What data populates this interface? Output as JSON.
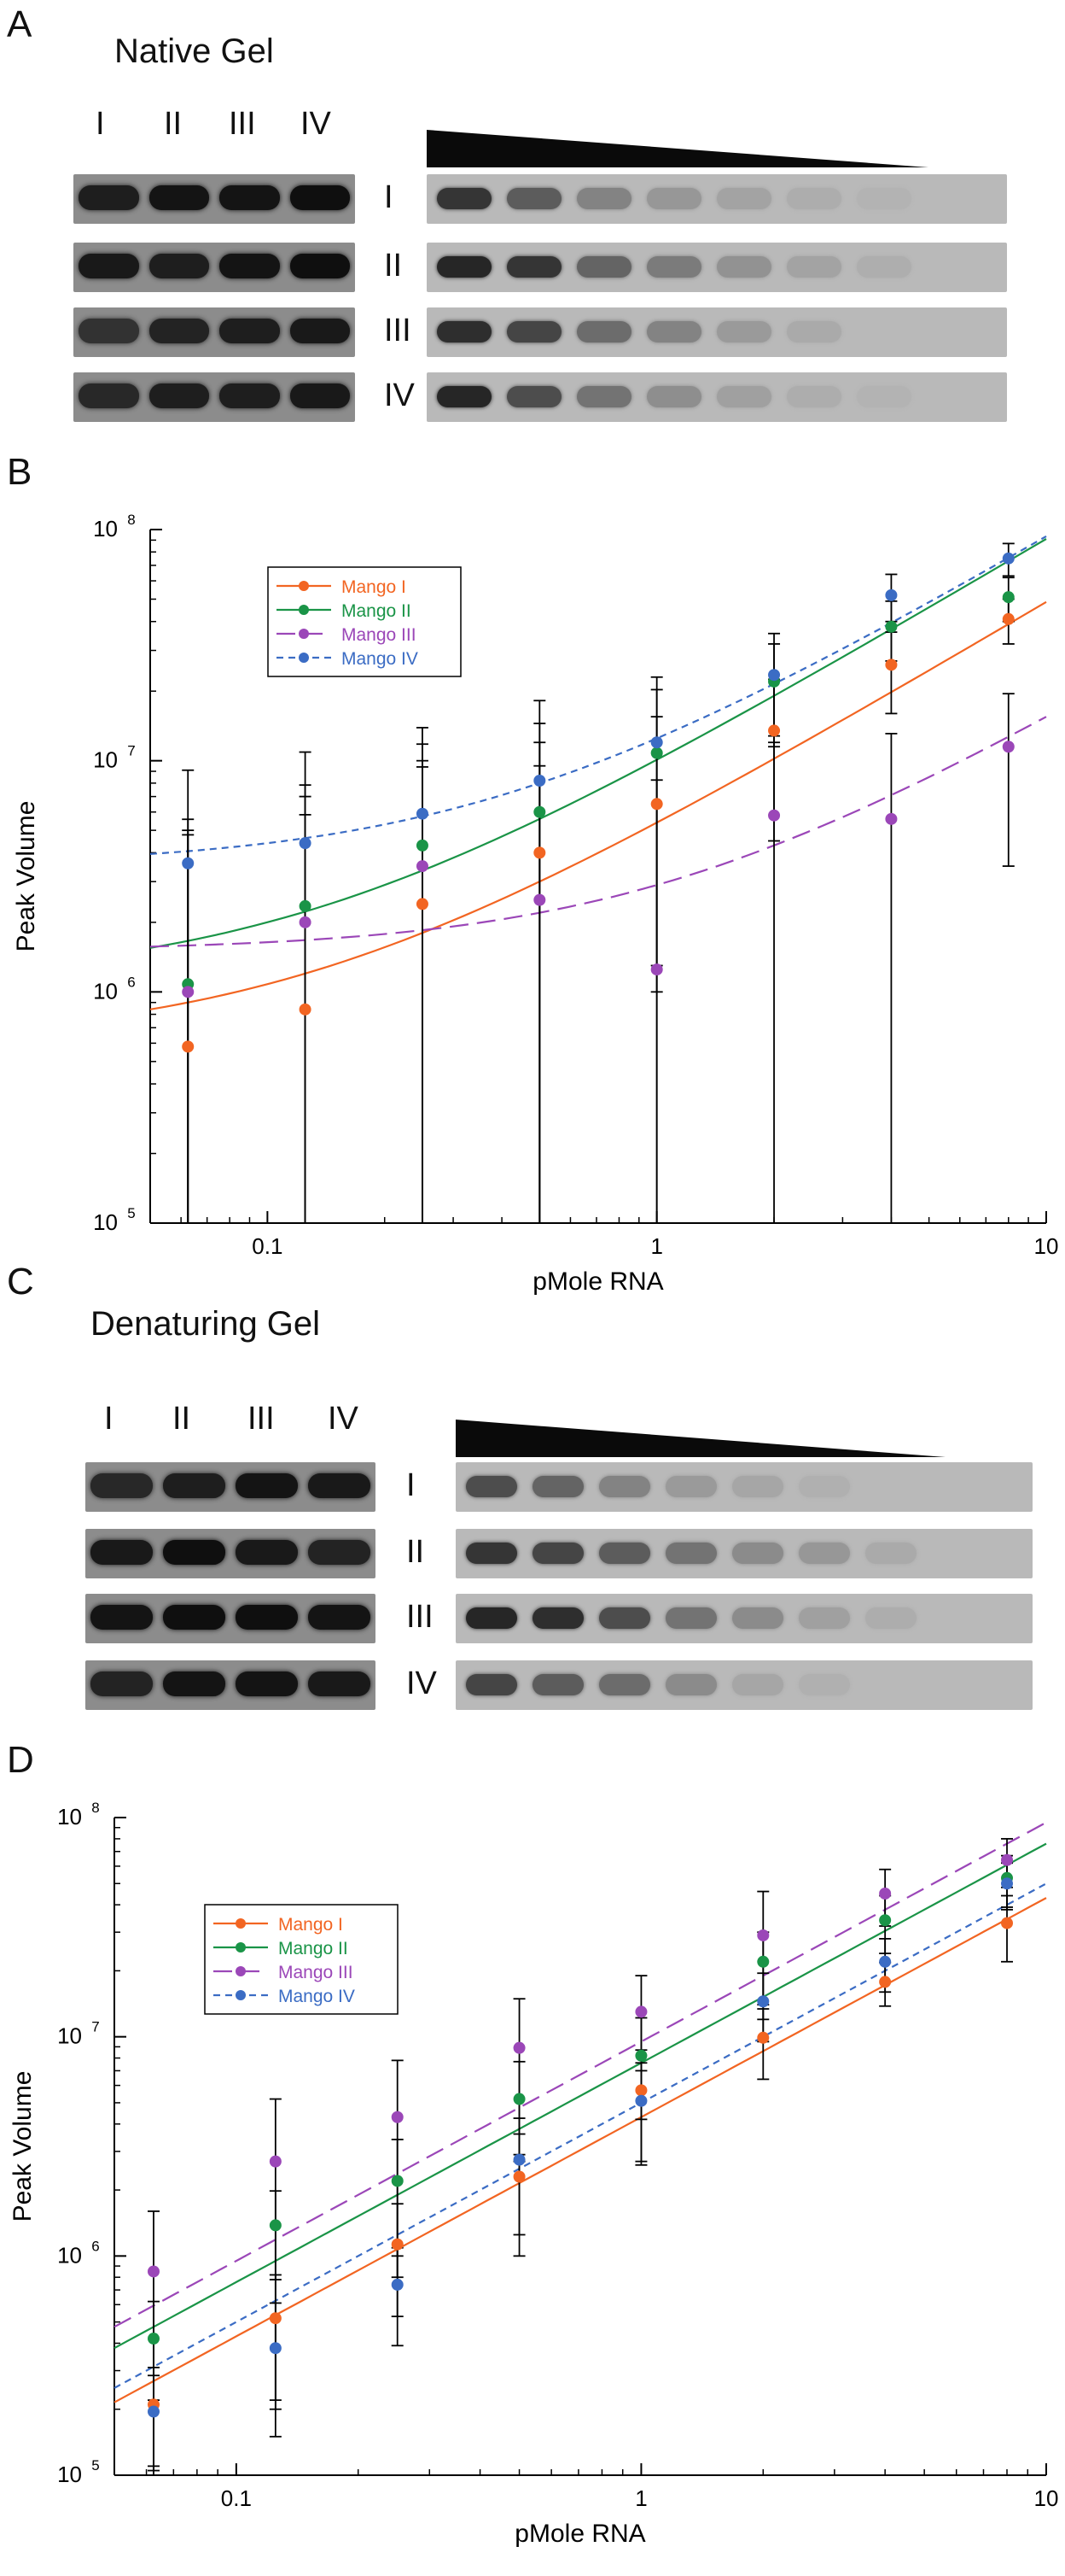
{
  "panels": {
    "A": "A",
    "B": "B",
    "C": "C",
    "D": "D"
  },
  "native_gel": {
    "title": "Native Gel",
    "lane_headers": [
      "I",
      "II",
      "III",
      "IV"
    ],
    "row_labels": [
      "I",
      "II",
      "III",
      "IV"
    ],
    "left_intensity": [
      [
        0.8,
        0.9,
        0.9,
        0.95
      ],
      [
        0.85,
        0.8,
        0.9,
        0.95
      ],
      [
        0.6,
        0.75,
        0.8,
        0.85
      ],
      [
        0.7,
        0.8,
        0.8,
        0.85
      ]
    ],
    "right_intensity": [
      [
        0.85,
        0.6,
        0.35,
        0.22,
        0.14,
        0.08,
        0.04,
        0.0
      ],
      [
        0.95,
        0.85,
        0.55,
        0.4,
        0.25,
        0.14,
        0.07,
        0.0
      ],
      [
        0.9,
        0.75,
        0.5,
        0.35,
        0.2,
        0.1,
        0.0,
        0.0
      ],
      [
        0.95,
        0.7,
        0.45,
        0.28,
        0.16,
        0.08,
        0.04,
        0.0
      ]
    ]
  },
  "denaturing_gel": {
    "title": "Denaturing Gel",
    "lane_headers": [
      "I",
      "II",
      "III",
      "IV"
    ],
    "row_labels": [
      "I",
      "II",
      "III",
      "IV"
    ],
    "left_intensity": [
      [
        0.7,
        0.8,
        0.9,
        0.85
      ],
      [
        0.85,
        0.95,
        0.85,
        0.75
      ],
      [
        0.9,
        0.95,
        0.95,
        0.9
      ],
      [
        0.75,
        0.9,
        0.9,
        0.85
      ]
    ],
    "right_intensity": [
      [
        0.7,
        0.55,
        0.35,
        0.2,
        0.12,
        0.06,
        0.0,
        0.0
      ],
      [
        0.85,
        0.75,
        0.6,
        0.45,
        0.3,
        0.22,
        0.1,
        0.0
      ],
      [
        0.95,
        0.9,
        0.7,
        0.45,
        0.3,
        0.16,
        0.08,
        0.0
      ],
      [
        0.75,
        0.6,
        0.5,
        0.3,
        0.12,
        0.06,
        0.0,
        0.0
      ]
    ]
  },
  "chart_data": [
    {
      "type": "scatter",
      "panel": "B",
      "xlabel": "pMole RNA",
      "ylabel": "Peak Volume",
      "xscale": "log",
      "yscale": "log",
      "xlim": [
        0.05,
        10
      ],
      "ylim": [
        100000,
        100000000
      ],
      "x_tick_labels": [
        "0.1",
        "1",
        "10"
      ],
      "y_tick_labels": [
        [
          "10",
          "5"
        ],
        [
          "10",
          "6"
        ],
        [
          "10",
          "7"
        ],
        [
          "10",
          "8"
        ]
      ],
      "legend_position": "top-left",
      "x": [
        0.0625,
        0.125,
        0.25,
        0.5,
        1,
        2,
        4,
        8
      ],
      "series": [
        {
          "name": "Mango I",
          "color": "#f26522",
          "dash": "solid",
          "values": [
            580000,
            840000,
            2400000,
            4000000,
            6500000,
            13500000,
            26000000,
            41000000
          ],
          "err": [
            4200000,
            5000000,
            7000000,
            8000000,
            9000000,
            9000000,
            10000000,
            9000000
          ],
          "fit": [
            0,
            2,
            600000,
            4800000
          ]
        },
        {
          "name": "Mango II",
          "color": "#1a9447",
          "dash": "solid",
          "values": [
            1080000,
            2350000,
            4300000,
            6000000,
            10800000,
            22000000,
            38000000,
            51000000
          ],
          "err": [
            4500000,
            5500000,
            7500000,
            8500000,
            9500000,
            10000000,
            11000000,
            11000000
          ],
          "fit": [
            0,
            2,
            1100000,
            9000000
          ]
        },
        {
          "name": "Mango III",
          "color": "#9b47b8",
          "dash": "long",
          "values": [
            1000000,
            2000000,
            3500000,
            2500000,
            1250000,
            5800000,
            5600000,
            11500000
          ],
          "err": [
            4000000,
            5000000,
            6500000,
            7000000,
            7000000,
            7000000,
            7500000,
            8000000
          ],
          "fit": [
            1500000,
            1400000,
            0,
            0
          ]
        },
        {
          "name": "Mango IV",
          "color": "#3b6cc4",
          "dash": "short",
          "values": [
            3600000,
            4400000,
            5900000,
            8200000,
            12000000,
            23500000,
            52000000,
            75000000
          ],
          "err": [
            5500000,
            6500000,
            8000000,
            10000000,
            11000000,
            12000000,
            12000000,
            12000000
          ],
          "fit": [
            3500000,
            9000000,
            0,
            0
          ]
        }
      ]
    },
    {
      "type": "scatter",
      "panel": "D",
      "xlabel": "pMole RNA",
      "ylabel": "Peak Volume",
      "xscale": "log",
      "yscale": "log",
      "xlim": [
        0.05,
        10
      ],
      "ylim": [
        100000,
        100000000
      ],
      "x_tick_labels": [
        "0.1",
        "1",
        "10"
      ],
      "y_tick_labels": [
        [
          "10",
          "5"
        ],
        [
          "10",
          "6"
        ],
        [
          "10",
          "7"
        ],
        [
          "10",
          "8"
        ]
      ],
      "legend_position": "top-left",
      "x": [
        0.0625,
        0.125,
        0.25,
        0.5,
        1,
        2,
        4,
        8
      ],
      "series": [
        {
          "name": "Mango I",
          "color": "#f26522",
          "dash": "solid",
          "values": [
            210000,
            520000,
            1130000,
            2300000,
            5700000,
            9900000,
            17800000,
            33000000
          ],
          "err": [
            100000,
            300000,
            600000,
            1300000,
            3000000,
            3500000,
            4000000,
            11000000
          ],
          "fit": [
            0,
            4300000,
            0,
            0
          ]
        },
        {
          "name": "Mango II",
          "color": "#1a9447",
          "dash": "solid",
          "values": [
            420000,
            1380000,
            2200000,
            5200000,
            8200000,
            22000000,
            34000000,
            53000000
          ],
          "err": [
            200000,
            600000,
            1200000,
            2500000,
            4000000,
            8000000,
            10000000,
            14000000
          ],
          "fit": [
            0,
            7600000,
            0,
            0
          ]
        },
        {
          "name": "Mango III",
          "color": "#9b47b8",
          "dash": "long",
          "values": [
            850000,
            2700000,
            4300000,
            8900000,
            13000000,
            29000000,
            45000000,
            64000000
          ],
          "err": [
            750000,
            2500000,
            3500000,
            6000000,
            6000000,
            17000000,
            13000000,
            16000000
          ],
          "fit": [
            0,
            9500000,
            0,
            0
          ]
        },
        {
          "name": "Mango IV",
          "color": "#3b6cc4",
          "dash": "short",
          "values": [
            195000,
            380000,
            740000,
            2750000,
            5100000,
            14500000,
            22000000,
            50000000
          ],
          "err": [
            90000,
            230000,
            350000,
            1500000,
            2500000,
            5000000,
            6000000,
            12000000
          ],
          "fit": [
            0,
            5000000,
            0,
            0
          ]
        }
      ]
    }
  ]
}
